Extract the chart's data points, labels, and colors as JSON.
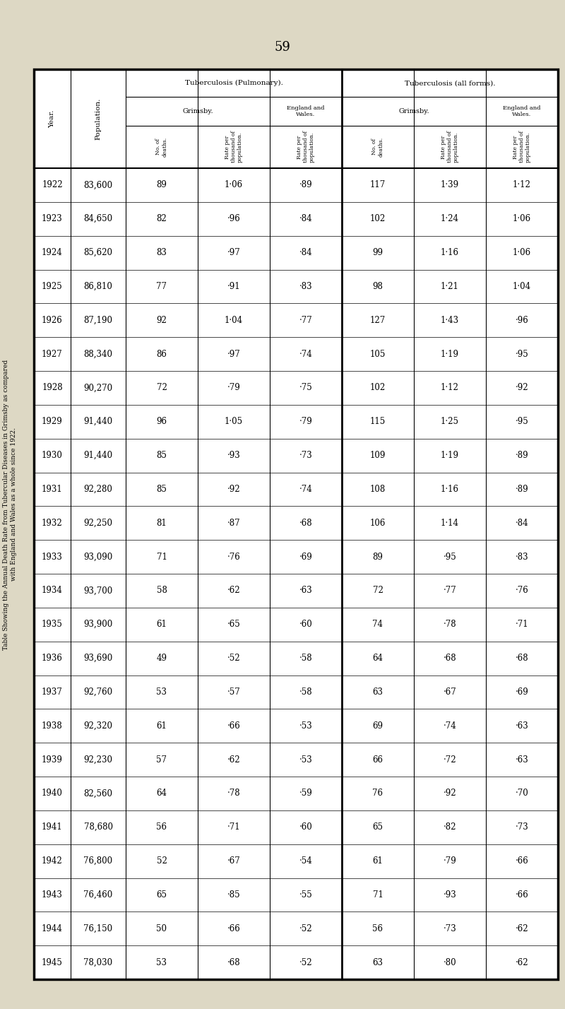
{
  "page_number": "59",
  "background_color": "#ddd8c4",
  "side_title_line1": "Table Showing the Annual Death Rate from Tubercular Diseases in Grimsby as compared",
  "side_title_line2": "with England and Wales as a whole since 1922.",
  "years": [
    1922,
    1923,
    1924,
    1925,
    1926,
    1927,
    1928,
    1929,
    1930,
    1931,
    1932,
    1933,
    1934,
    1935,
    1936,
    1937,
    1938,
    1939,
    1940,
    1941,
    1942,
    1943,
    1944,
    1945
  ],
  "population": [
    "83,600",
    "84,650",
    "85,620",
    "86,810",
    "87,190",
    "88,340",
    "90,270",
    "91,440",
    "91,440",
    "92,280",
    "92,250",
    "93,090",
    "93,700",
    "93,900",
    "93,690",
    "92,760",
    "92,320",
    "92,230",
    "82,560",
    "78,680",
    "76,800",
    "76,460",
    "76,150",
    "78,030"
  ],
  "pulm_grimsby_deaths": [
    "89",
    "82",
    "83",
    "77",
    "92",
    "86",
    "72",
    "96",
    "85",
    "85",
    "81",
    "71",
    "58",
    "61",
    "49",
    "53",
    "61",
    "57",
    "64",
    "56",
    "52",
    "65",
    "50",
    "53"
  ],
  "pulm_grimsby_rate": [
    "1·06",
    "·96",
    "·97",
    "·91",
    "1·04",
    "·97",
    "·79",
    "1·05",
    "·93",
    "·92",
    "·87",
    "·76",
    "·62",
    "·65",
    "·52",
    "·57",
    "·66",
    "·62",
    "·78",
    "·71",
    "·67",
    "·85",
    "·66",
    "·68"
  ],
  "pulm_ew_rate": [
    "·89",
    "·84",
    "·84",
    "·83",
    "·77",
    "·74",
    "·75",
    "·79",
    "·73",
    "·74",
    "·68",
    "·69",
    "·63",
    "·60",
    "·58",
    "·58",
    "·53",
    "·53",
    "·59",
    "·60",
    "·54",
    "·55",
    "·52",
    "·52"
  ],
  "all_grimsby_deaths": [
    "117",
    "102",
    "99",
    "98",
    "127",
    "105",
    "102",
    "115",
    "109",
    "108",
    "106",
    "89",
    "72",
    "74",
    "64",
    "63",
    "69",
    "66",
    "76",
    "65",
    "61",
    "71",
    "56",
    "63"
  ],
  "all_grimsby_rate": [
    "1·39",
    "1·24",
    "1·16",
    "1·21",
    "1·43",
    "1·19",
    "1·12",
    "1·25",
    "1·19",
    "1·16",
    "1·14",
    "·95",
    "·77",
    "·78",
    "·68",
    "·67",
    "·74",
    "·72",
    "·92",
    "·82",
    "·79",
    "·93",
    "·73",
    "·80"
  ],
  "all_ew_rate": [
    "1·12",
    "1·06",
    "1·06",
    "1·04",
    "·96",
    "·95",
    "·92",
    "·95",
    "·89",
    "·89",
    "·84",
    "·83",
    "·76",
    "·71",
    "·68",
    "·69",
    "·63",
    "·63",
    "·70",
    "·73",
    "·66",
    "·66",
    "·62",
    "·62"
  ]
}
